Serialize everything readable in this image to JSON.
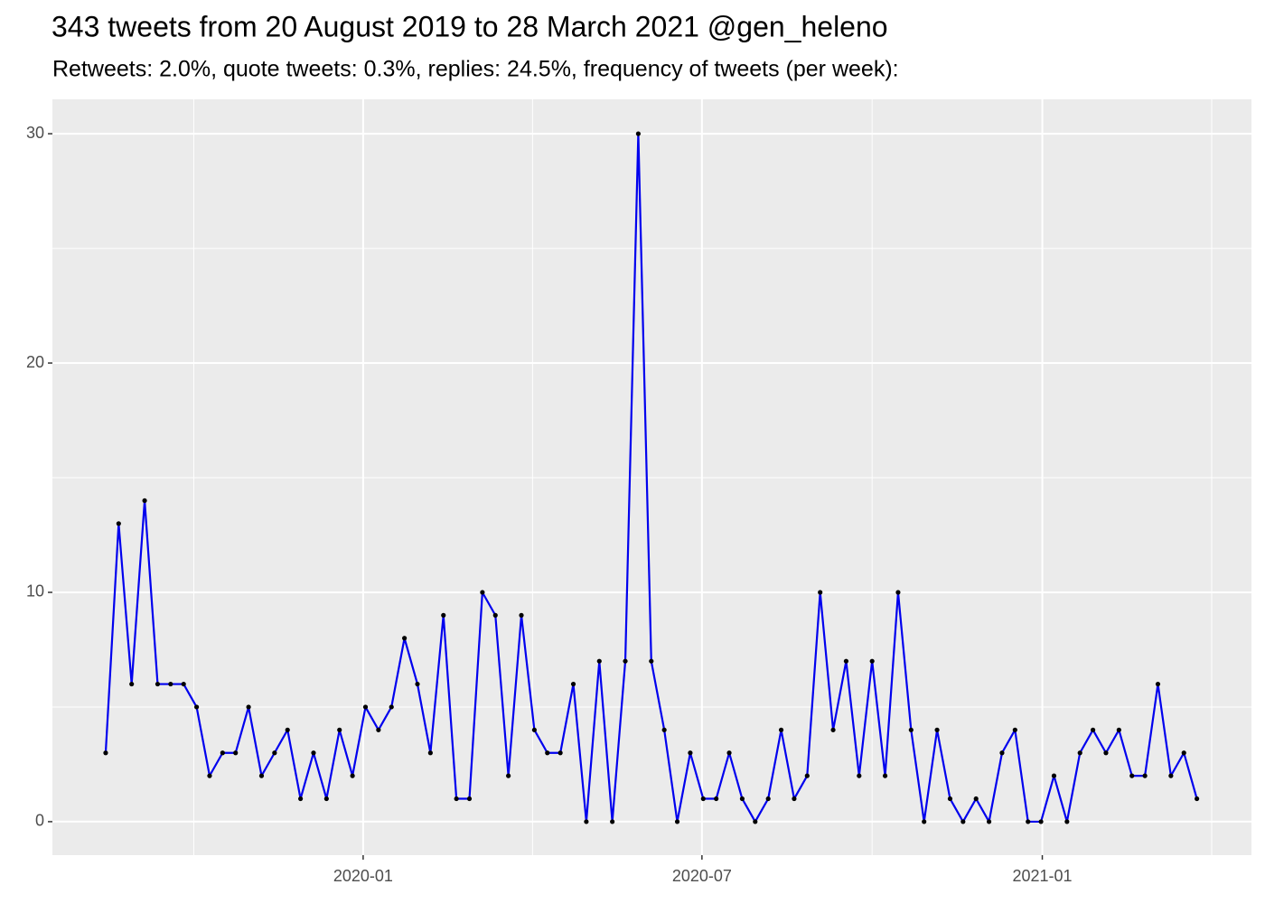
{
  "chart_data": {
    "type": "line",
    "title": "343 tweets from 20 August 2019 to 28 March 2021 @gen_heleno",
    "subtitle": "Retweets: 2.0%, quote tweets: 0.3%, replies: 24.5%, frequency of tweets (per week):",
    "values": [
      3,
      13,
      6,
      14,
      6,
      6,
      6,
      5,
      2,
      3,
      3,
      5,
      2,
      3,
      4,
      1,
      3,
      1,
      4,
      2,
      5,
      4,
      5,
      8,
      6,
      3,
      9,
      1,
      1,
      10,
      9,
      2,
      9,
      4,
      3,
      3,
      6,
      0,
      7,
      0,
      7,
      30,
      7,
      4,
      0,
      3,
      1,
      1,
      3,
      1,
      0,
      1,
      4,
      1,
      2,
      10,
      4,
      7,
      2,
      7,
      2,
      10,
      4,
      0,
      4,
      1,
      0,
      1,
      0,
      3,
      4,
      0,
      0,
      2,
      0,
      3,
      4,
      3,
      4,
      2,
      2,
      6,
      2,
      3,
      1
    ],
    "color": "#0000ee",
    "point_color": "#000000",
    "xlim": [
      -4.1,
      88.2
    ],
    "xticks": [
      {
        "value": 19.82,
        "label": "2020-01"
      },
      {
        "value": 45.9,
        "label": "2020-07"
      },
      {
        "value": 72.1,
        "label": "2021-01"
      }
    ],
    "ylim": [
      -1.46,
      31.5
    ],
    "yticks": [
      0,
      10,
      20,
      30
    ],
    "grid": true
  }
}
